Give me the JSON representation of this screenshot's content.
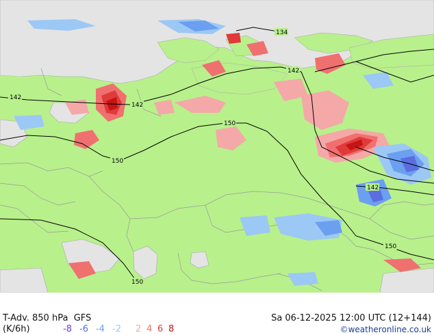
{
  "footer": {
    "title": "T-Adv. 850 hPa",
    "model": "GFS",
    "units": "(K/6h)",
    "datetime": "Sa 06-12-2025 12:00 UTC (12+144)",
    "credit": "©weatheronline.co.uk"
  },
  "legend": [
    {
      "value": "-8",
      "color": "#6a3bd6"
    },
    {
      "value": "-6",
      "color": "#5a6ee0"
    },
    {
      "value": "-4",
      "color": "#6b9ff0"
    },
    {
      "value": "-2",
      "color": "#9cc8f5"
    },
    {
      "value": "2",
      "color": "#f5a8a8"
    },
    {
      "value": "4",
      "color": "#f07070"
    },
    {
      "value": "6",
      "color": "#e03a3a"
    },
    {
      "value": "8",
      "color": "#c41414"
    }
  ],
  "isolines": [
    {
      "label": "134"
    },
    {
      "label": "142"
    },
    {
      "label": "142"
    },
    {
      "label": "142"
    },
    {
      "label": "142"
    },
    {
      "label": "150"
    },
    {
      "label": "150"
    },
    {
      "label": "150"
    },
    {
      "label": "150"
    }
  ],
  "colors": {
    "land": "#b8f08c",
    "sea": "#e4e4e4",
    "border": "#9a9a9a",
    "isoline": "#000000"
  }
}
